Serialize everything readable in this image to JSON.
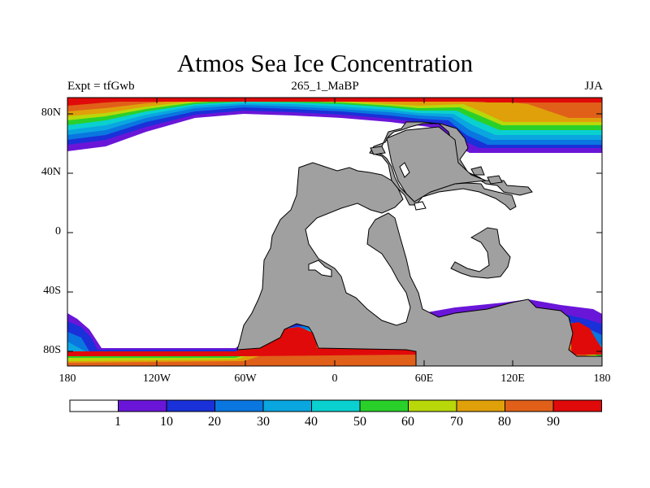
{
  "title": "Atmos Sea Ice Concentration",
  "left_string": "Expt = tfGwb",
  "center_string": "265_1_MaBP",
  "right_string": "JJA",
  "y_ticks": [
    "80N",
    "40N",
    "0",
    "40S",
    "80S"
  ],
  "x_ticks": [
    "180",
    "120W",
    "60W",
    "0",
    "60E",
    "120E",
    "180"
  ],
  "colorbar": {
    "levels": [
      "1",
      "10",
      "20",
      "30",
      "40",
      "50",
      "60",
      "70",
      "80",
      "90"
    ],
    "colors": [
      "#ffffff",
      "#6a16d8",
      "#1a30d8",
      "#0a76e0",
      "#0aa6e0",
      "#0ad0d0",
      "#2ad02a",
      "#b8d80a",
      "#e0a00a",
      "#e0601a",
      "#e00a0a"
    ]
  },
  "colors": {
    "land": "#a0a0a0",
    "ocean": "#ffffff"
  }
}
